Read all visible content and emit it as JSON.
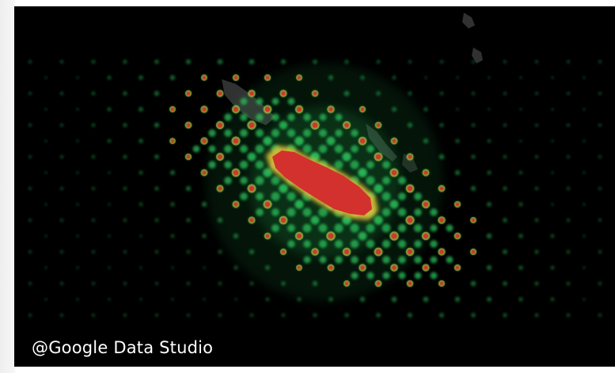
{
  "map": {
    "caption": "@Google Data Studio",
    "background_color": "#000000",
    "colors": {
      "low": "#2bbf5a",
      "medium": "#e0c23a",
      "high": "#d3312e",
      "land": "#3a3a3a"
    },
    "layers": [
      "land-silhouette",
      "point-grid",
      "density-halo",
      "hotspot"
    ]
  }
}
